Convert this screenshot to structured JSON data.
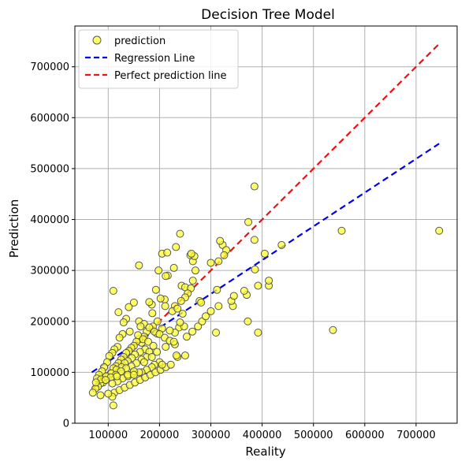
{
  "chart_data": {
    "type": "scatter",
    "title": "Decision Tree Model",
    "xlabel": "Reality",
    "ylabel": "Prediction",
    "xlim": [
      35000,
      780000
    ],
    "ylim": [
      0,
      780000
    ],
    "xticks": [
      100000,
      200000,
      300000,
      400000,
      500000,
      600000,
      700000
    ],
    "yticks": [
      0,
      100000,
      200000,
      300000,
      400000,
      500000,
      600000,
      700000
    ],
    "xtick_labels": [
      "100000",
      "200000",
      "300000",
      "400000",
      "500000",
      "600000",
      "700000"
    ],
    "ytick_labels": [
      "0",
      "100000",
      "200000",
      "300000",
      "400000",
      "500000",
      "600000",
      "700000"
    ],
    "grid": true,
    "legend_position": "top-left",
    "legend": [
      "prediction",
      "Regression Line",
      "Perfect prediction line"
    ],
    "colors": {
      "points_fill": "#ffff33",
      "points_edge": "#555555",
      "regression": "#0000ee",
      "perfect": "#ee1111",
      "grid": "#b0b0b0"
    },
    "regression_line": {
      "x": [
        68000,
        745000
      ],
      "y": [
        100000,
        549000
      ]
    },
    "perfect_line": {
      "x": [
        68000,
        745000
      ],
      "y": [
        68000,
        745000
      ]
    },
    "series": [
      {
        "name": "prediction",
        "x": [
          745000,
          555000,
          538000,
          385000,
          373000,
          370000,
          413000,
          392000,
          438000,
          343000,
          385000,
          323000,
          318000,
          315000,
          330000,
          326000,
          300000,
          310000,
          372000,
          386000,
          405000,
          312000,
          265000,
          260000,
          268000,
          262000,
          240000,
          232000,
          205000,
          160000,
          215000,
          228000,
          243000,
          250000,
          261000,
          270000,
          265000,
          255000,
          278000,
          281000,
          250000,
          242000,
          230000,
          210000,
          216000,
          212000,
          198000,
          193000,
          202000,
          185000,
          180000,
          186000,
          196000,
          225000,
          211000,
          238000,
          248000,
          245000,
          235000,
          240000,
          230000,
          220000,
          205000,
          195000,
          187000,
          175000,
          170000,
          165000,
          160000,
          155000,
          150000,
          145000,
          140000,
          135000,
          130000,
          125000,
          120000,
          115000,
          110000,
          105000,
          100000,
          95000,
          90000,
          85000,
          80000,
          75000,
          70000,
          150000,
          140000,
          135000,
          128000,
          122000,
          118000,
          112000,
          108000,
          102000,
          98000,
          92000,
          88000,
          82000,
          78000,
          110000,
          120000,
          130000,
          142000,
          158000,
          168000,
          178000,
          188000,
          172000,
          162000,
          152000,
          146000,
          138000,
          132000,
          126000,
          116000,
          106000,
          96000,
          86000,
          76000,
          160000,
          170000,
          180000,
          190000,
          200000,
          210000,
          220000,
          230000,
          180000,
          175000,
          165000,
          155000,
          145000,
          135000,
          125000,
          115000,
          105000,
          95000,
          200000,
          190000,
          185000,
          175000,
          165000,
          148000,
          138000,
          128000,
          118000,
          108000,
          112000,
          122000,
          132000,
          142000,
          152000,
          162000,
          172000,
          182000,
          192000,
          202000,
          212000,
          222000,
          235000,
          250000,
          233000,
          205000,
          160000,
          138000,
          117000,
          108000,
          110000,
          100000,
          85000,
          150000,
          150000,
          163000,
          170000,
          185000,
          195000,
          212000,
          228000,
          253000,
          264000,
          275000,
          283000,
          290000,
          300000,
          315000,
          340000,
          345000,
          365000,
          392000,
          413000
        ],
        "y": [
          378000,
          378000,
          183000,
          465000,
          395000,
          252000,
          270000,
          178000,
          350000,
          230000,
          360000,
          350000,
          358000,
          318000,
          340000,
          330000,
          315000,
          178000,
          200000,
          302000,
          333000,
          262000,
          318000,
          330000,
          328000,
          333000,
          372000,
          346000,
          333000,
          310000,
          335000,
          305000,
          270000,
          267000,
          265000,
          300000,
          280000,
          255000,
          240000,
          237000,
          247000,
          240000,
          230000,
          243000,
          290000,
          289000,
          300000,
          262000,
          245000,
          233000,
          238000,
          216000,
          200000,
          220000,
          230000,
          188000,
          190000,
          215000,
          225000,
          198000,
          178000,
          182000,
          186000,
          176000,
          190000,
          180000,
          170000,
          158000,
          165000,
          160000,
          152000,
          148000,
          142000,
          138000,
          130000,
          125000,
          118000,
          112000,
          108000,
          98000,
          92000,
          85000,
          80000,
          78000,
          72000,
          68000,
          60000,
          237000,
          228000,
          205000,
          175000,
          168000,
          150000,
          145000,
          138000,
          132000,
          120000,
          110000,
          102000,
          95000,
          88000,
          260000,
          218000,
          198000,
          180000,
          173000,
          165000,
          160000,
          152000,
          145000,
          140000,
          135000,
          128000,
          122000,
          118000,
          110000,
          105000,
          98000,
          92000,
          86000,
          80000,
          200000,
          195000,
          188000,
          180000,
          175000,
          168000,
          162000,
          155000,
          140000,
          130000,
          125000,
          118000,
          112000,
          108000,
          102000,
          95000,
          90000,
          85000,
          120000,
          115000,
          110000,
          105000,
          100000,
          98000,
          92000,
          88000,
          82000,
          78000,
          60000,
          65000,
          70000,
          75000,
          80000,
          85000,
          90000,
          95000,
          100000,
          105000,
          110000,
          115000,
          130000,
          133000,
          133000,
          115000,
          100000,
          95000,
          92000,
          52000,
          35000,
          58000,
          55000,
          102000,
          95000,
          190000,
          120000,
          130000,
          140000,
          150000,
          160000,
          170000,
          180000,
          190000,
          200000,
          210000,
          220000,
          230000,
          240000,
          250000,
          260000,
          270000,
          280000
        ]
      }
    ]
  }
}
